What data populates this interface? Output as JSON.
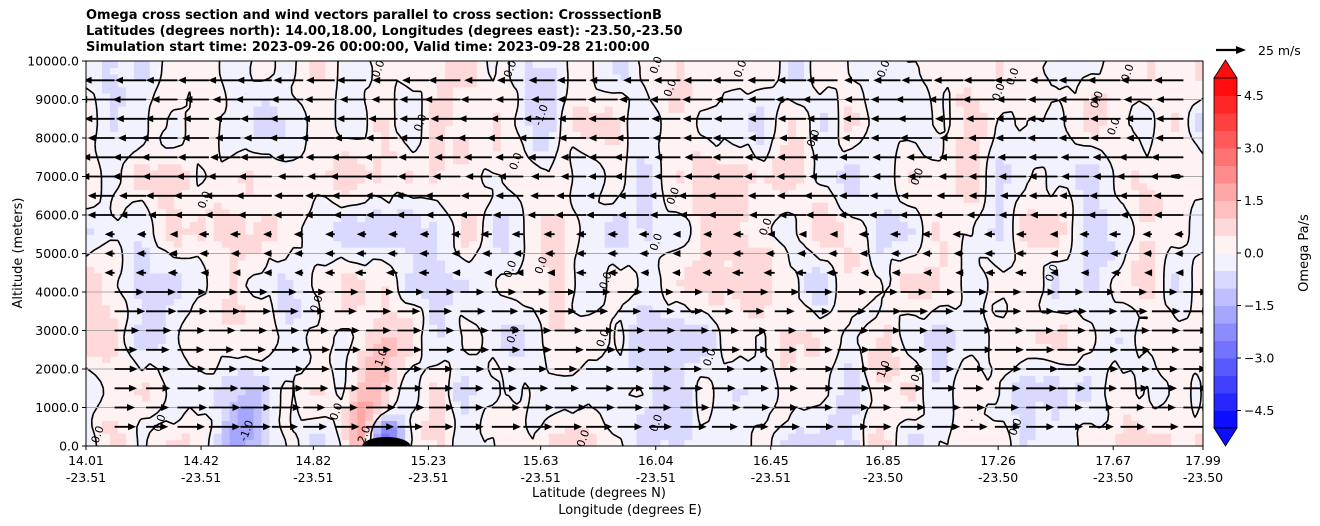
{
  "title_lines": [
    "Omega cross section and wind vectors parallel to cross section: CrosssectionB",
    "Latitudes (degrees north): 14.00,18.00, Longitudes (degrees east): -23.50,-23.50",
    "Simulation start time: 2023-09-26 00:00:00, Valid time: 2023-09-28 21:00:00"
  ],
  "chart_data": {
    "type": "heatmap",
    "xlabel_lines": [
      "Latitude (degrees N)",
      "Longitude (degrees E)"
    ],
    "ylabel": "Altitude (meters)",
    "ylim": [
      0,
      10000
    ],
    "yticks": [
      "0.0",
      "1000.0",
      "2000.0",
      "3000.0",
      "4000.0",
      "5000.0",
      "6000.0",
      "7000.0",
      "8000.0",
      "9000.0",
      "10000.0"
    ],
    "xticks": [
      {
        "lat": "14.01",
        "lon": "-23.51"
      },
      {
        "lat": "14.42",
        "lon": "-23.51"
      },
      {
        "lat": "14.82",
        "lon": "-23.51"
      },
      {
        "lat": "15.23",
        "lon": "-23.51"
      },
      {
        "lat": "15.63",
        "lon": "-23.51"
      },
      {
        "lat": "16.04",
        "lon": "-23.51"
      },
      {
        "lat": "16.45",
        "lon": "-23.51"
      },
      {
        "lat": "16.85",
        "lon": "-23.50"
      },
      {
        "lat": "17.26",
        "lon": "-23.50"
      },
      {
        "lat": "17.67",
        "lon": "-23.50"
      },
      {
        "lat": "17.99",
        "lon": "-23.50"
      }
    ],
    "grid": "horizontal",
    "colorbar": {
      "label": "Omega Pa/s",
      "ticks": [
        "4.5",
        "3.0",
        "1.5",
        "0.0",
        "−1.5",
        "−3.0",
        "−4.5"
      ],
      "range": [
        -5,
        5
      ],
      "colormap": "bwr",
      "extend": "both"
    },
    "quiver_key": {
      "label": "25 m/s"
    },
    "omega_features": [
      {
        "lat": 15.63,
        "alt": 8600,
        "omega": -1.0,
        "kind": "contour-label"
      },
      {
        "lat": 15.06,
        "alt": 2300,
        "omega": 1.0,
        "kind": "contour-label"
      },
      {
        "lat": 14.58,
        "alt": 400,
        "omega": -1.0,
        "kind": "contour-label"
      },
      {
        "lat": 16.85,
        "alt": 2000,
        "omega": 1.0,
        "kind": "contour-label"
      },
      {
        "lat": 15.0,
        "alt": 300,
        "omega": 2.0,
        "kind": "contour-label"
      },
      {
        "lat": 15.08,
        "alt": 250,
        "omega": -3.0,
        "kind": "minimum"
      }
    ],
    "zero_contour_labels": [
      {
        "lat": 14.05,
        "alt": 300
      },
      {
        "lat": 14.27,
        "alt": 600
      },
      {
        "lat": 14.9,
        "alt": 900
      },
      {
        "lat": 14.83,
        "alt": 3700
      },
      {
        "lat": 14.43,
        "alt": 6400
      },
      {
        "lat": 15.05,
        "alt": 9800
      },
      {
        "lat": 15.2,
        "alt": 8400
      },
      {
        "lat": 15.52,
        "alt": 9800
      },
      {
        "lat": 15.54,
        "alt": 7400
      },
      {
        "lat": 15.52,
        "alt": 4600
      },
      {
        "lat": 15.63,
        "alt": 4700
      },
      {
        "lat": 15.53,
        "alt": 2900
      },
      {
        "lat": 15.85,
        "alt": 2800
      },
      {
        "lat": 15.78,
        "alt": 200
      },
      {
        "lat": 15.86,
        "alt": 4300
      },
      {
        "lat": 16.1,
        "alt": 6500
      },
      {
        "lat": 16.04,
        "alt": 5300
      },
      {
        "lat": 16.09,
        "alt": 9300
      },
      {
        "lat": 16.04,
        "alt": 9900
      },
      {
        "lat": 16.04,
        "alt": 600
      },
      {
        "lat": 16.23,
        "alt": 2300
      },
      {
        "lat": 16.34,
        "alt": 9800
      },
      {
        "lat": 16.43,
        "alt": 5700
      },
      {
        "lat": 16.6,
        "alt": 8000
      },
      {
        "lat": 16.85,
        "alt": 9800
      },
      {
        "lat": 16.97,
        "alt": 7000
      },
      {
        "lat": 16.97,
        "alt": 1900
      },
      {
        "lat": 17.31,
        "alt": 9600
      },
      {
        "lat": 17.26,
        "alt": 9200
      },
      {
        "lat": 17.45,
        "alt": 4500
      },
      {
        "lat": 17.72,
        "alt": 9700
      },
      {
        "lat": 17.61,
        "alt": 9000
      },
      {
        "lat": 17.67,
        "alt": 8300
      },
      {
        "lat": 17.32,
        "alt": 500
      }
    ],
    "wind_regime": [
      {
        "alt_from": 6000,
        "alt_to": 10000,
        "u_ms": -25,
        "note": "easterly, strongest aloft"
      },
      {
        "alt_from": 4500,
        "alt_to": 6000,
        "u_ms": -8,
        "note": "weak easterly"
      },
      {
        "alt_from": 0,
        "alt_to": 4500,
        "u_ms": 22,
        "note": "westerly at low and mid levels"
      }
    ]
  }
}
